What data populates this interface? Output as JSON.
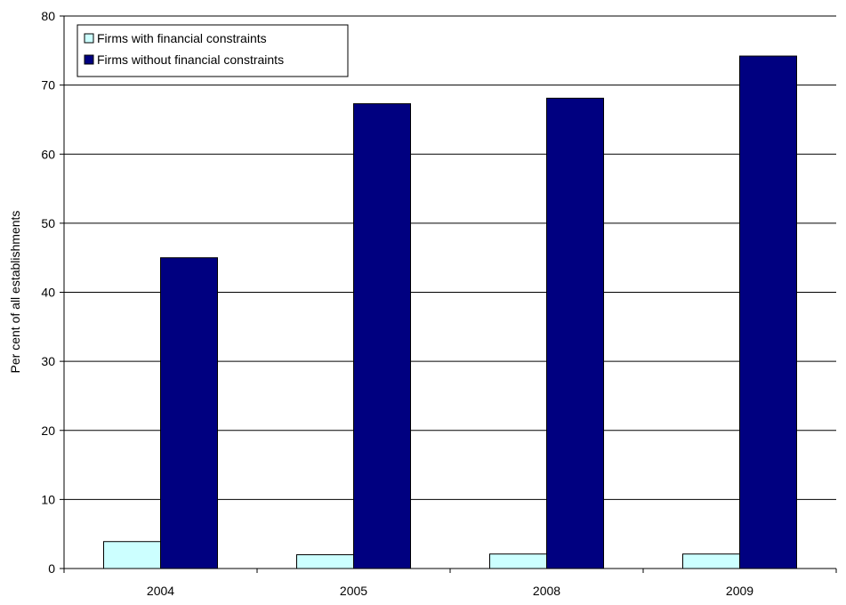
{
  "chart_data": {
    "type": "bar",
    "categories": [
      "2004",
      "2005",
      "2008",
      "2009"
    ],
    "series": [
      {
        "name": "Firms with financial constraints",
        "values": [
          3.9,
          2.0,
          2.1,
          2.1
        ],
        "color": "#ccffff"
      },
      {
        "name": "Firms without financial constraints",
        "values": [
          45,
          67.3,
          68.1,
          74.2
        ],
        "color": "#000080"
      }
    ],
    "title": "",
    "xlabel": "",
    "ylabel": "Per cent of all establishments",
    "ylim": [
      0,
      80
    ],
    "yticks": [
      "0",
      "10",
      "20",
      "30",
      "40",
      "50",
      "60",
      "70",
      "80"
    ],
    "grid": true,
    "legend_position": "top-left"
  }
}
